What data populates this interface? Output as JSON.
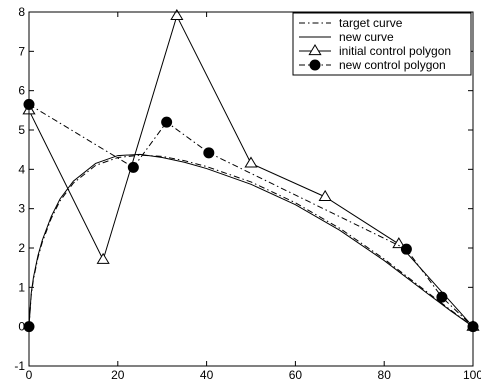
{
  "chart_data": {
    "type": "line",
    "title": "",
    "xlabel": "",
    "ylabel": "",
    "xlim": [
      0,
      100
    ],
    "ylim": [
      -1,
      8
    ],
    "x_ticks": [
      0,
      20,
      40,
      60,
      80,
      100
    ],
    "y_ticks": [
      -1,
      0,
      1,
      2,
      3,
      4,
      5,
      6,
      7,
      8
    ],
    "grid": false,
    "legend_position": "top-right",
    "series": [
      {
        "name": "target curve",
        "style": "dash-dot",
        "color": "#000000",
        "x": [
          0,
          0.5,
          1,
          2,
          3,
          5,
          7,
          10,
          15,
          20,
          25,
          30,
          35,
          40,
          50,
          60,
          70,
          80,
          90,
          95,
          100
        ],
        "y": [
          0,
          0.8,
          1.2,
          1.75,
          2.15,
          2.75,
          3.2,
          3.65,
          4.1,
          4.3,
          4.36,
          4.33,
          4.22,
          4.07,
          3.68,
          3.15,
          2.5,
          1.72,
          0.85,
          0.42,
          0
        ]
      },
      {
        "name": "new curve",
        "style": "solid",
        "color": "#000000",
        "x": [
          0,
          0.5,
          1,
          2,
          3,
          5,
          7,
          10,
          15,
          20,
          25,
          30,
          35,
          40,
          50,
          60,
          70,
          80,
          90,
          95,
          100
        ],
        "y": [
          0,
          0.85,
          1.25,
          1.8,
          2.2,
          2.8,
          3.25,
          3.7,
          4.15,
          4.35,
          4.38,
          4.3,
          4.18,
          4.02,
          3.62,
          3.1,
          2.45,
          1.68,
          0.82,
          0.4,
          0
        ]
      },
      {
        "name": "initial control polygon",
        "style": "solid",
        "marker": "triangle",
        "color": "#000000",
        "x": [
          0,
          16.7,
          33.3,
          50,
          66.7,
          83.3,
          100
        ],
        "y": [
          5.5,
          1.7,
          7.9,
          4.15,
          3.3,
          2.1,
          0
        ]
      },
      {
        "name": "new control polygon",
        "style": "dash-dot",
        "marker": "circle",
        "color": "#000000",
        "x": [
          0,
          23.5,
          31,
          40.5,
          85,
          93,
          100
        ],
        "y": [
          5.65,
          4.05,
          5.2,
          4.42,
          1.97,
          0.75,
          0
        ]
      },
      {
        "name": "",
        "style": "none",
        "marker": "circle",
        "color": "#000000",
        "x": [
          0
        ],
        "y": [
          0
        ]
      }
    ]
  }
}
